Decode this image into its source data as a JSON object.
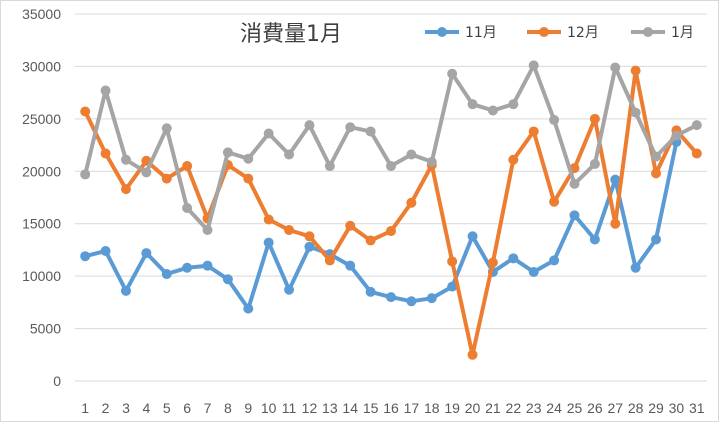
{
  "chart_data": {
    "type": "line",
    "title": "消費量1月",
    "xlabel": "",
    "ylabel": "",
    "ylim": [
      0,
      35000
    ],
    "yticks": [
      0,
      5000,
      10000,
      15000,
      20000,
      25000,
      30000,
      35000
    ],
    "grid": true,
    "legend_position": "top-right",
    "x": [
      1,
      2,
      3,
      4,
      5,
      6,
      7,
      8,
      9,
      10,
      11,
      12,
      13,
      14,
      15,
      16,
      17,
      18,
      19,
      20,
      21,
      22,
      23,
      24,
      25,
      26,
      27,
      28,
      29,
      30,
      31
    ],
    "series": [
      {
        "name": "11月",
        "color": "#5b9bd5",
        "values": [
          11900,
          12400,
          8600,
          12200,
          10200,
          10800,
          11000,
          9700,
          6900,
          13200,
          8700,
          12800,
          12100,
          11000,
          8500,
          8000,
          7600,
          7900,
          9000,
          13800,
          10400,
          11700,
          10400,
          11500,
          15800,
          13500,
          19200,
          10800,
          13500,
          22800,
          null
        ]
      },
      {
        "name": "12月",
        "color": "#ed7d31",
        "values": [
          25700,
          21700,
          18300,
          21000,
          19300,
          20500,
          15500,
          20600,
          19300,
          15400,
          14400,
          13800,
          11500,
          14800,
          13400,
          14300,
          17000,
          20600,
          11400,
          2500,
          11300,
          21100,
          23800,
          17100,
          20300,
          25000,
          15000,
          29600,
          19800,
          23900,
          21700
        ]
      },
      {
        "name": "1月",
        "color": "#a5a5a5",
        "values": [
          19700,
          27700,
          21100,
          19900,
          24100,
          16500,
          14400,
          21800,
          21200,
          23600,
          21600,
          24400,
          20500,
          24200,
          23800,
          20500,
          21600,
          20900,
          29300,
          26400,
          25800,
          26400,
          30100,
          24900,
          18800,
          20700,
          29900,
          25600,
          21400,
          23400,
          24400
        ]
      }
    ]
  }
}
